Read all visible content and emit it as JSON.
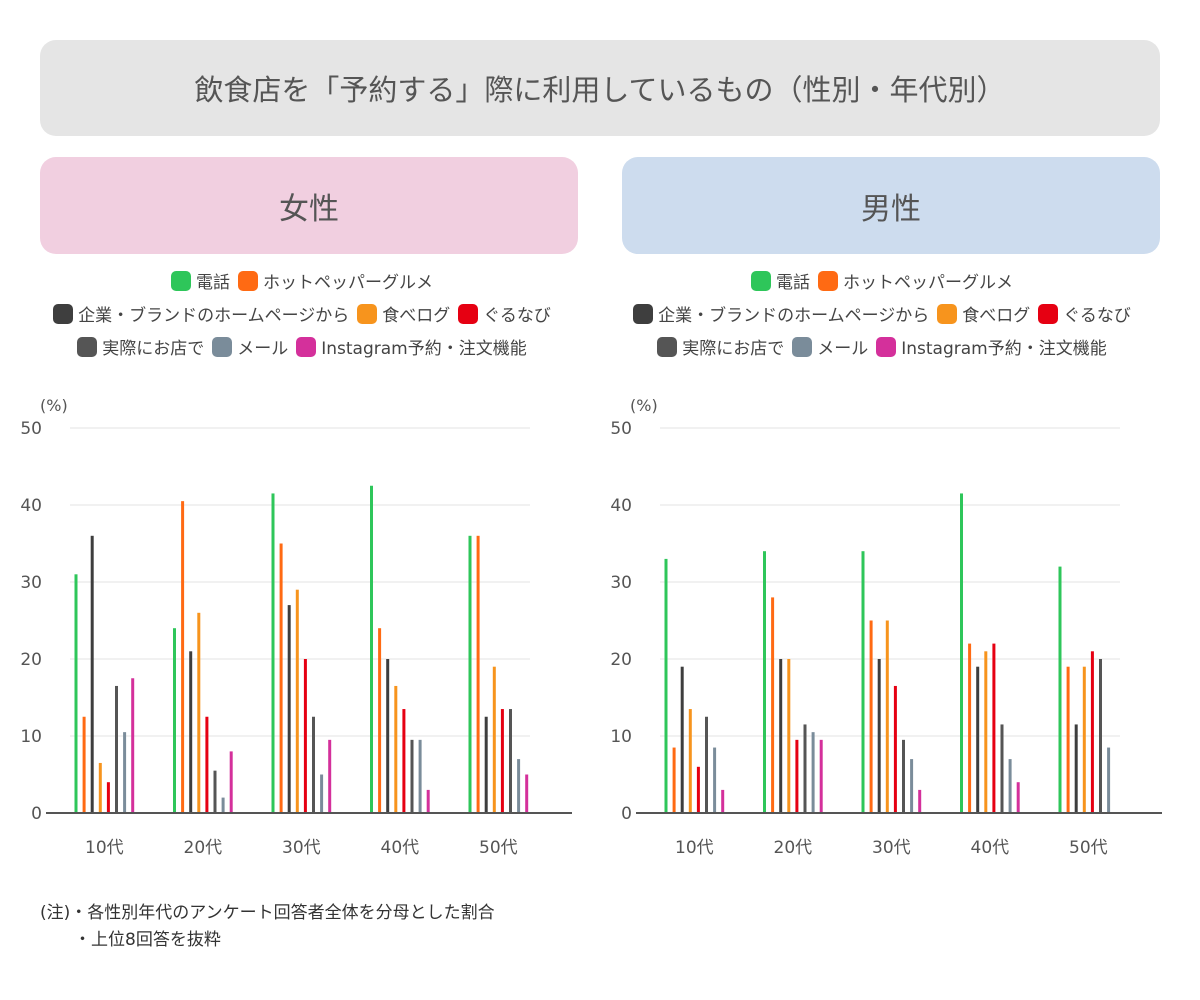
{
  "title": "飲食店を「予約する」際に利用しているもの（性別・年代別）",
  "colors": {
    "phone": "#2ec65a",
    "hotpepper": "#ff6a13",
    "company": "#3e3e3e",
    "tabelog": "#f7941d",
    "gurunavi": "#e60012",
    "instore": "#555555",
    "mail": "#7a8c9a",
    "instagram": "#d4309b"
  },
  "legend": [
    [
      {
        "key": "phone",
        "label": "電話"
      },
      {
        "key": "hotpepper",
        "label": "ホットペッパーグルメ"
      }
    ],
    [
      {
        "key": "company",
        "label": "企業・ブランドのホームページから"
      },
      {
        "key": "tabelog",
        "label": "食べログ"
      },
      {
        "key": "gurunavi",
        "label": "ぐるなび"
      }
    ],
    [
      {
        "key": "instore",
        "label": "実際にお店で"
      },
      {
        "key": "mail",
        "label": "メール"
      },
      {
        "key": "instagram",
        "label": "Instagram予約・注文機能"
      }
    ]
  ],
  "chart_data": [
    {
      "type": "bar",
      "title": "女性",
      "ylabel": "(%)",
      "ylim": [
        0,
        50
      ],
      "yticks": [
        "0",
        "10",
        "20",
        "30",
        "40",
        "50"
      ],
      "categories": [
        "10代",
        "20代",
        "30代",
        "40代",
        "50代"
      ],
      "series": [
        {
          "key": "phone",
          "name": "電話",
          "values": [
            31,
            24,
            41.5,
            42.5,
            36
          ]
        },
        {
          "key": "hotpepper",
          "name": "ホットペッパーグルメ",
          "values": [
            12.5,
            40.5,
            35,
            24,
            36
          ]
        },
        {
          "key": "company",
          "name": "企業・ブランドのホームページから",
          "values": [
            36,
            21,
            27,
            20,
            12.5
          ]
        },
        {
          "key": "tabelog",
          "name": "食べログ",
          "values": [
            6.5,
            26,
            29,
            16.5,
            19
          ]
        },
        {
          "key": "gurunavi",
          "name": "ぐるなび",
          "values": [
            4,
            12.5,
            20,
            13.5,
            13.5
          ]
        },
        {
          "key": "instore",
          "name": "実際にお店で",
          "values": [
            16.5,
            5.5,
            12.5,
            9.5,
            13.5
          ]
        },
        {
          "key": "mail",
          "name": "メール",
          "values": [
            10.5,
            2,
            5,
            9.5,
            7
          ]
        },
        {
          "key": "instagram",
          "name": "Instagram予約・注文機能",
          "values": [
            17.5,
            8,
            9.5,
            3,
            5
          ]
        }
      ]
    },
    {
      "type": "bar",
      "title": "男性",
      "ylabel": "(%)",
      "ylim": [
        0,
        50
      ],
      "yticks": [
        "0",
        "10",
        "20",
        "30",
        "40",
        "50"
      ],
      "categories": [
        "10代",
        "20代",
        "30代",
        "40代",
        "50代"
      ],
      "series": [
        {
          "key": "phone",
          "name": "電話",
          "values": [
            33,
            34,
            34,
            41.5,
            32
          ]
        },
        {
          "key": "hotpepper",
          "name": "ホットペッパーグルメ",
          "values": [
            8.5,
            28,
            25,
            22,
            19
          ]
        },
        {
          "key": "company",
          "name": "企業・ブランドのホームページから",
          "values": [
            19,
            20,
            20,
            19,
            11.5
          ]
        },
        {
          "key": "tabelog",
          "name": "食べログ",
          "values": [
            13.5,
            20,
            25,
            21,
            19
          ]
        },
        {
          "key": "gurunavi",
          "name": "ぐるなび",
          "values": [
            6,
            9.5,
            16.5,
            22,
            21
          ]
        },
        {
          "key": "instore",
          "name": "実際にお店で",
          "values": [
            12.5,
            11.5,
            9.5,
            11.5,
            20
          ]
        },
        {
          "key": "mail",
          "name": "メール",
          "values": [
            8.5,
            10.5,
            7,
            7,
            8.5
          ]
        },
        {
          "key": "instagram",
          "name": "Instagram予約・注文機能",
          "values": [
            3,
            9.5,
            3,
            4,
            null
          ]
        }
      ]
    }
  ],
  "notes": [
    "(注)・各性別年代のアンケート回答者全体を分母とした割合",
    "・上位8回答を抜粋"
  ]
}
